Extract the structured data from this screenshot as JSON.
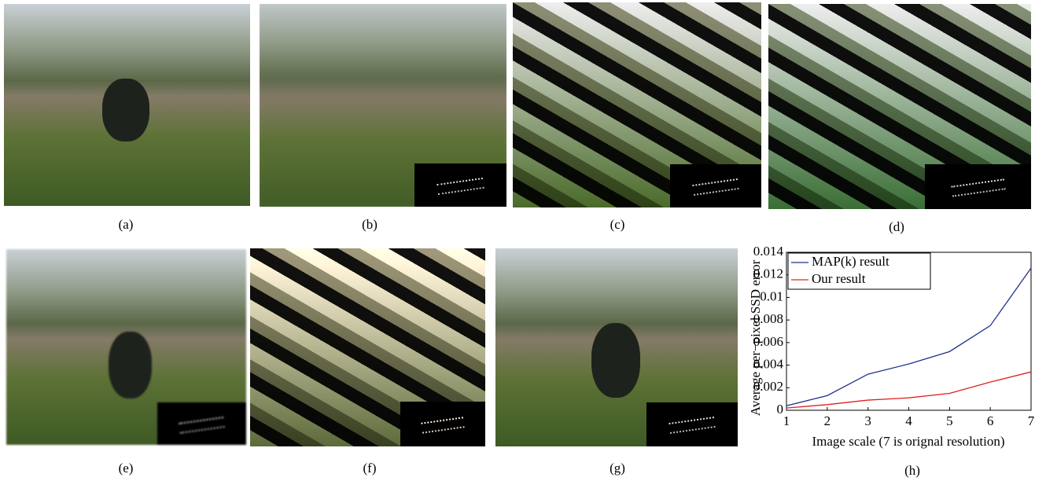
{
  "panels": [
    "(a)",
    "(b)",
    "(c)",
    "(d)",
    "(e)",
    "(f)",
    "(g)",
    "(h)"
  ],
  "chart_data": {
    "type": "line",
    "x": [
      1,
      2,
      3,
      4,
      5,
      6,
      7
    ],
    "series": [
      {
        "name": "MAP(k) result",
        "color": "#22308a",
        "values": [
          0.0004,
          0.0013,
          0.0032,
          0.0041,
          0.0052,
          0.0075,
          0.0126
        ]
      },
      {
        "name": "Our result",
        "color": "#e02020",
        "values": [
          0.0002,
          0.0005,
          0.0009,
          0.0011,
          0.0015,
          0.0025,
          0.0034
        ]
      }
    ],
    "xlabel": "Image scale (7 is orignal resolution)",
    "ylabel": "Average per−pixel SSD error",
    "xlim": [
      1,
      7
    ],
    "ylim": [
      0,
      0.014
    ],
    "xticks": [
      1,
      2,
      3,
      4,
      5,
      6,
      7
    ],
    "yticks": [
      0,
      0.002,
      0.004,
      0.006,
      0.008,
      0.01,
      0.012,
      0.014
    ],
    "legend": "upper left"
  }
}
